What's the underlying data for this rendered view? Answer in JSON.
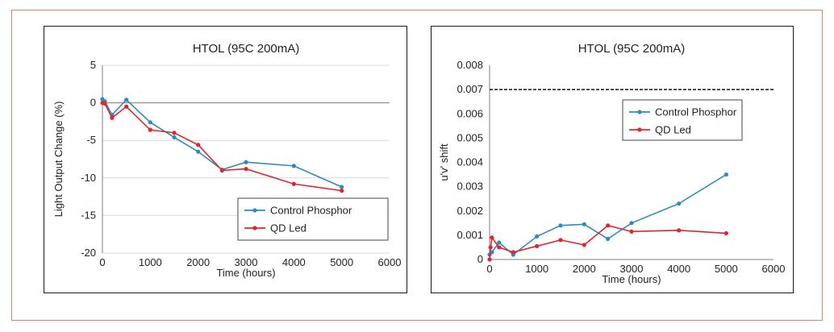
{
  "chart_data": [
    {
      "type": "line",
      "title": "HTOL (95C 200mA)",
      "xlabel": "Time (hours)",
      "ylabel": "Light Output Change (%)",
      "xlim": [
        0,
        6000
      ],
      "ylim": [
        -20,
        5
      ],
      "xticks": [
        0,
        1000,
        2000,
        3000,
        4000,
        5000,
        6000
      ],
      "yticks": [
        5,
        0,
        -5,
        -10,
        -15,
        -20
      ],
      "grid": true,
      "legend_position": "lower-right",
      "series": [
        {
          "name": "Control Phosphor",
          "color": "#2e8bc0",
          "x": [
            0,
            50,
            200,
            500,
            1000,
            1500,
            2000,
            2500,
            3000,
            4000,
            5000
          ],
          "y": [
            0.5,
            0.2,
            -1.6,
            0.4,
            -2.6,
            -4.6,
            -6.5,
            -8.9,
            -7.9,
            -8.4,
            -11.2
          ]
        },
        {
          "name": "QD Led",
          "color": "#e0262b",
          "x": [
            0,
            50,
            200,
            500,
            1000,
            1500,
            2000,
            2500,
            3000,
            4000,
            5000
          ],
          "y": [
            0.0,
            -0.1,
            -2.0,
            -0.5,
            -3.6,
            -4.0,
            -5.6,
            -9.0,
            -8.8,
            -10.8,
            -11.7
          ]
        }
      ]
    },
    {
      "type": "line",
      "title": "HTOL (95C 200mA)",
      "xlabel": "Time (hours)",
      "ylabel": "u'v' shift",
      "xlim": [
        0,
        6000
      ],
      "ylim": [
        0,
        0.008
      ],
      "xticks": [
        0,
        1000,
        2000,
        3000,
        4000,
        5000,
        6000
      ],
      "yticks": [
        "0",
        "0.001",
        "0.002",
        "0.003",
        "0.004",
        "0.005",
        "0.006",
        "0.007",
        "0.008"
      ],
      "grid": false,
      "legend_position": "top-right",
      "threshold_line": 0.007,
      "series": [
        {
          "name": "Control Phosphor",
          "color": "#2e8bc0",
          "x": [
            0,
            50,
            200,
            500,
            1000,
            1500,
            2000,
            2500,
            3000,
            4000,
            5000
          ],
          "y": [
            0.0002,
            0.0003,
            0.0007,
            0.0002,
            0.00095,
            0.0014,
            0.00145,
            0.00085,
            0.0015,
            0.0023,
            0.0035
          ]
        },
        {
          "name": "QD Led",
          "color": "#e0262b",
          "x": [
            0,
            20,
            50,
            200,
            500,
            1000,
            1500,
            2000,
            2500,
            3000,
            4000,
            5000
          ],
          "y": [
            0.0,
            0.0005,
            0.0009,
            0.0005,
            0.0003,
            0.00055,
            0.0008,
            0.0006,
            0.0014,
            0.00115,
            0.0012,
            0.00108
          ]
        }
      ]
    }
  ]
}
